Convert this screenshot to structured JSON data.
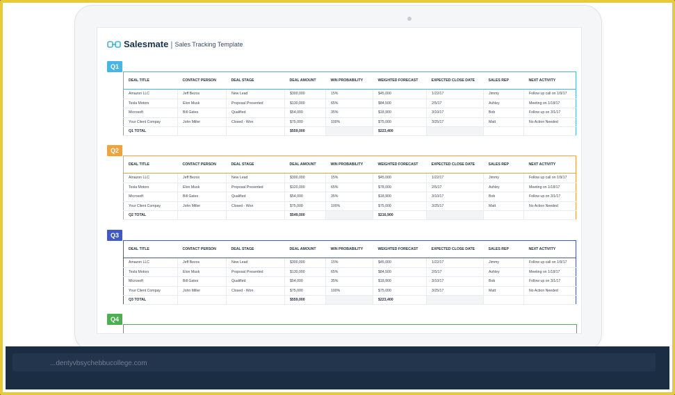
{
  "brand": {
    "name": "Salesmate",
    "separator": "|",
    "subtitle": "Sales Tracking Template",
    "logo_icon": "salesmate-logo-icon"
  },
  "watermark": "...dentyvbsychebbucollege.com",
  "colors": {
    "q1": "#44b6e8",
    "q2": "#f2a23a",
    "q3": "#4158c9",
    "q4": "#4caf50",
    "frame": "#e8c93a",
    "dark": "#1b2d43"
  },
  "columns": [
    "DEAL TITLE",
    "CONTACT PERSON",
    "DEAL STAGE",
    "DEAL AMOUNT",
    "WIN PROBABILITY",
    "WEIGHTED FORECAST",
    "EXPECTED CLOSE DATE",
    "SALES REP",
    "NEXT ACTIVITY"
  ],
  "quarters": [
    {
      "label": "Q1",
      "rows": [
        [
          "Amazon LLC",
          "Jeff Bezos",
          "New Lead",
          "$300,000",
          "15%",
          "$45,000",
          "1/22/17",
          "Jimmy",
          "Follow up call on 1/9/17"
        ],
        [
          "Tesla Motors",
          "Elon Musk",
          "Proposal Presented",
          "$130,000",
          "65%",
          "$84,500",
          "2/5/17",
          "Ashley",
          "Meeting on 1/18/17"
        ],
        [
          "Microsoft",
          "Bill Gates",
          "Qualified",
          "$54,000",
          "35%",
          "$18,900",
          "3/10/17",
          "Bob",
          "Follow up on 3/1/17"
        ],
        [
          "Your Client Compay",
          "John Miller",
          "Closed - Won",
          "$75,000",
          "100%",
          "$75,000",
          "3/25/17",
          "Matt",
          "No Action Needed"
        ]
      ],
      "total": {
        "label": "Q1 TOTAL",
        "amount": "$559,000",
        "forecast": "$223,400"
      }
    },
    {
      "label": "Q2",
      "rows": [
        [
          "Amazon LLC",
          "Jeff Bezos",
          "New Lead",
          "$300,000",
          "15%",
          "$45,000",
          "1/22/17",
          "Jimmy",
          "Follow up call on 1/9/17"
        ],
        [
          "Tesla Motors",
          "Elon Musk",
          "Proposal Presented",
          "$120,000",
          "65%",
          "$78,000",
          "2/5/17",
          "Ashley",
          "Meeting on 1/18/17"
        ],
        [
          "Microsoft",
          "Bill Gates",
          "Qualified",
          "$54,000",
          "35%",
          "$18,900",
          "3/10/17",
          "Bob",
          "Follow up on 3/1/17"
        ],
        [
          "Your Client Compay",
          "John Miller",
          "Closed - Won",
          "$75,000",
          "100%",
          "$75,000",
          "3/25/17",
          "Matt",
          "No Action Needed"
        ]
      ],
      "total": {
        "label": "Q2 TOTAL",
        "amount": "$549,000",
        "forecast": "$216,900"
      }
    },
    {
      "label": "Q3",
      "rows": [
        [
          "Amazon LLC",
          "Jeff Bezos",
          "New Lead",
          "$300,000",
          "15%",
          "$45,000",
          "1/22/17",
          "Jimmy",
          "Follow up call on 1/9/17"
        ],
        [
          "Tesla Motors",
          "Elon Musk",
          "Proposal Presented",
          "$130,000",
          "65%",
          "$84,500",
          "2/5/17",
          "Ashley",
          "Meeting on 1/18/17"
        ],
        [
          "Microsoft",
          "Bill Gates",
          "Qualified",
          "$54,000",
          "35%",
          "$18,900",
          "3/10/17",
          "Bob",
          "Follow up on 3/1/17"
        ],
        [
          "Your Client Compay",
          "John Miller",
          "Closed - Won",
          "$75,000",
          "100%",
          "$75,000",
          "3/25/17",
          "Matt",
          "No Action Needed"
        ]
      ],
      "total": {
        "label": "Q3 TOTAL",
        "amount": "$559,000",
        "forecast": "$223,400"
      }
    },
    {
      "label": "Q4"
    }
  ]
}
